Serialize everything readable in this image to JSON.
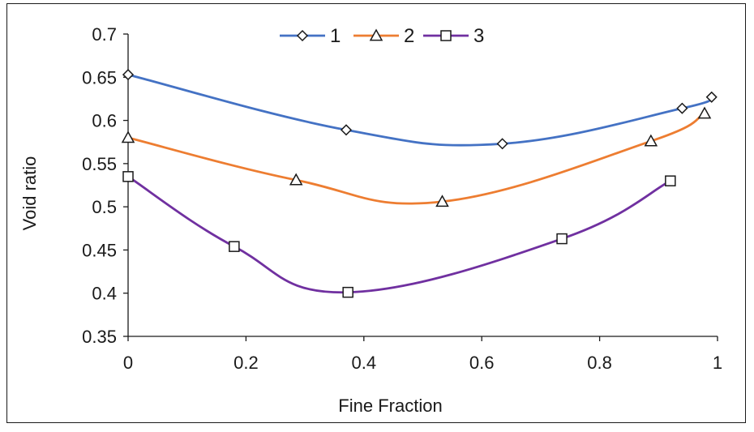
{
  "chart_data": {
    "type": "line",
    "title": "",
    "xlabel": "Fine Fraction",
    "ylabel": "Void ratio",
    "xlim": [
      0,
      1
    ],
    "ylim": [
      0.35,
      0.7
    ],
    "xticks": [
      "0",
      "0.2",
      "0.4",
      "0.6",
      "0.8",
      "1"
    ],
    "xtick_values": [
      0,
      0.2,
      0.4,
      0.6,
      0.8,
      1
    ],
    "yticks": [
      "0.35",
      "0.4",
      "0.45",
      "0.5",
      "0.55",
      "0.6",
      "0.65",
      "0.7"
    ],
    "ytick_values": [
      0.35,
      0.4,
      0.45,
      0.5,
      0.55,
      0.6,
      0.65,
      0.7
    ],
    "grid": false,
    "smooth": true,
    "legend": {
      "placement": "top-center"
    },
    "series": [
      {
        "name": "1",
        "color": "#4472c4",
        "marker": "diamond",
        "x": [
          0,
          0.37,
          0.635,
          0.94,
          0.99
        ],
        "y": [
          0.653,
          0.589,
          0.573,
          0.614,
          0.627
        ]
      },
      {
        "name": "2",
        "color": "#ed7d31",
        "marker": "triangle",
        "x": [
          0,
          0.285,
          0.533,
          0.887,
          0.978
        ],
        "y": [
          0.58,
          0.531,
          0.506,
          0.576,
          0.608
        ]
      },
      {
        "name": "3",
        "color": "#7030a0",
        "marker": "square",
        "x": [
          0,
          0.18,
          0.373,
          0.736,
          0.92
        ],
        "y": [
          0.535,
          0.454,
          0.401,
          0.463,
          0.53
        ]
      }
    ]
  }
}
